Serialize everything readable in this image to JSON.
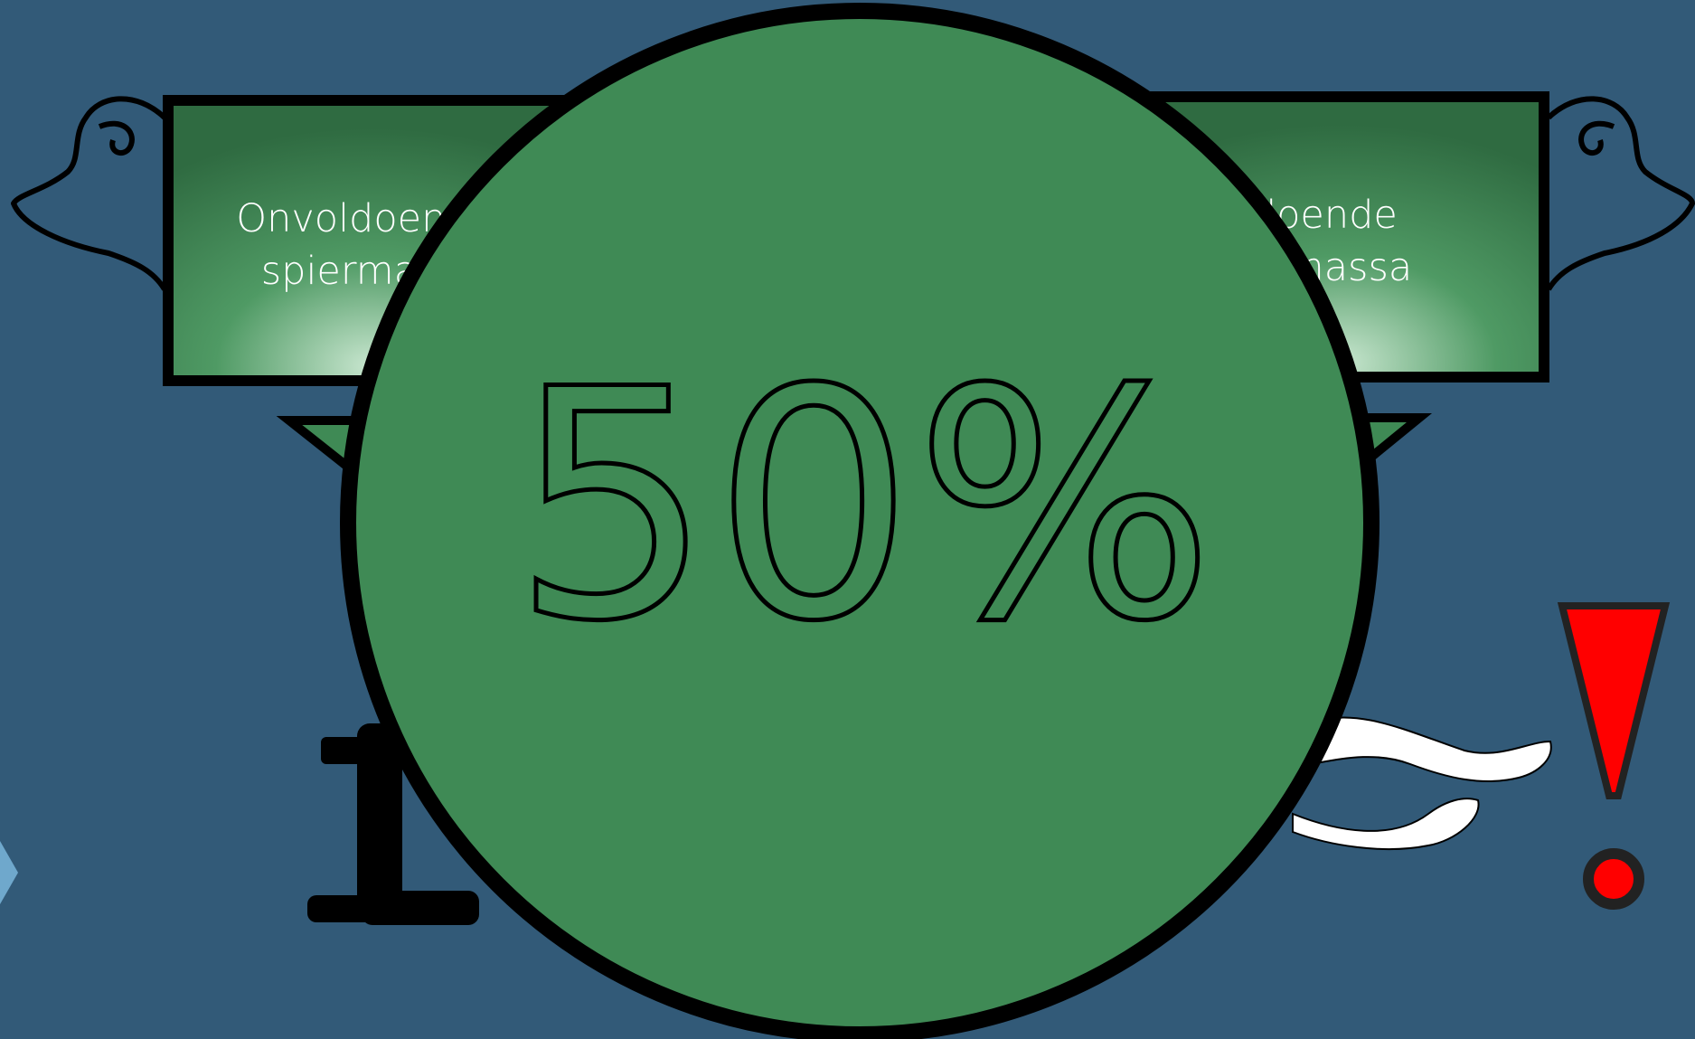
{
  "boxes": [
    {
      "lines": [
        "Onvoldoende",
        "spiermassa"
      ]
    },
    {
      "lines": [
        "Voldoende",
        "spiermassa"
      ]
    }
  ],
  "percentage": "50%"
}
